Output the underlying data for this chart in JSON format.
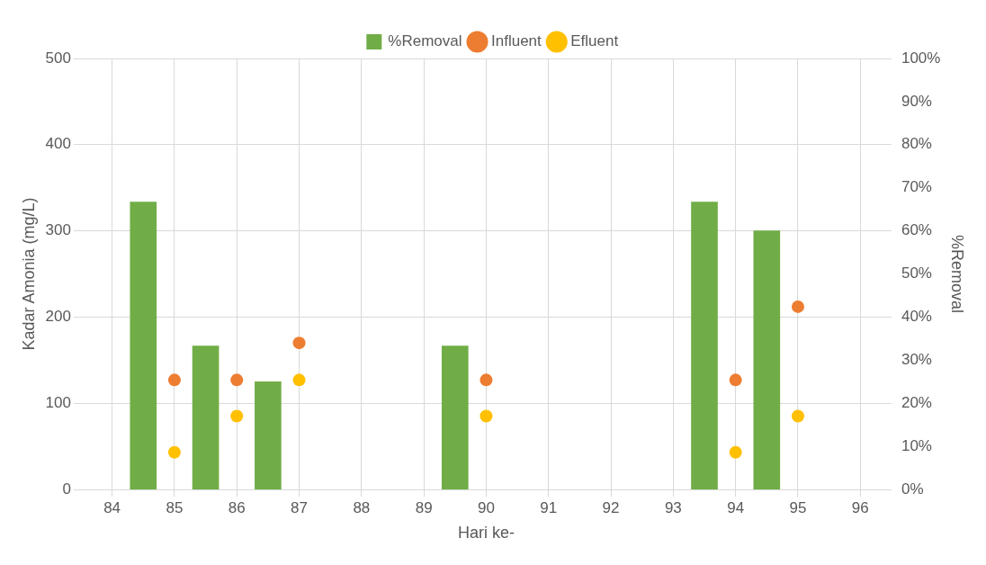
{
  "chart_data": {
    "type": "bar",
    "xlabel": "Hari ke-",
    "ylabel": "Kadar Amonia (mg/L)",
    "y2label": "%Removal",
    "xlim": [
      84,
      96
    ],
    "xticks": [
      84,
      85,
      86,
      87,
      88,
      89,
      90,
      91,
      92,
      93,
      94,
      95,
      96
    ],
    "ylim": [
      0,
      500
    ],
    "yticks": [
      0,
      100,
      200,
      300,
      400,
      500
    ],
    "y2lim": [
      0,
      100
    ],
    "y2ticks": [
      {
        "value": 0,
        "label": "0%"
      },
      {
        "value": 10,
        "label": "10%"
      },
      {
        "value": 20,
        "label": "20%"
      },
      {
        "value": 30,
        "label": "30%"
      },
      {
        "value": 40,
        "label": "40%"
      },
      {
        "value": 50,
        "label": "50%"
      },
      {
        "value": 60,
        "label": "60%"
      },
      {
        "value": 70,
        "label": "70%"
      },
      {
        "value": 80,
        "label": "80%"
      },
      {
        "value": 90,
        "label": "90%"
      },
      {
        "value": 100,
        "label": "100%"
      }
    ],
    "series": [
      {
        "name": "%Removal",
        "axis": "y2",
        "color": "#70ad47",
        "x": [
          84.5,
          85.5,
          86.5,
          89.5,
          93.5,
          94.5
        ],
        "values": [
          66.7,
          33.3,
          25,
          33.3,
          66.7,
          60
        ]
      },
      {
        "name": "Influent",
        "type": "scatter",
        "color": "#ed7d31",
        "x": [
          85,
          86,
          87,
          90,
          94,
          95
        ],
        "values": [
          127,
          127,
          170,
          127,
          127,
          212
        ]
      },
      {
        "name": "Efluent",
        "type": "scatter",
        "color": "#ffc000",
        "x": [
          85,
          86,
          87,
          90,
          94,
          95
        ],
        "values": [
          43,
          85,
          127,
          85,
          43,
          85
        ]
      }
    ],
    "grid": true,
    "legend": "top",
    "marker": "circle"
  }
}
